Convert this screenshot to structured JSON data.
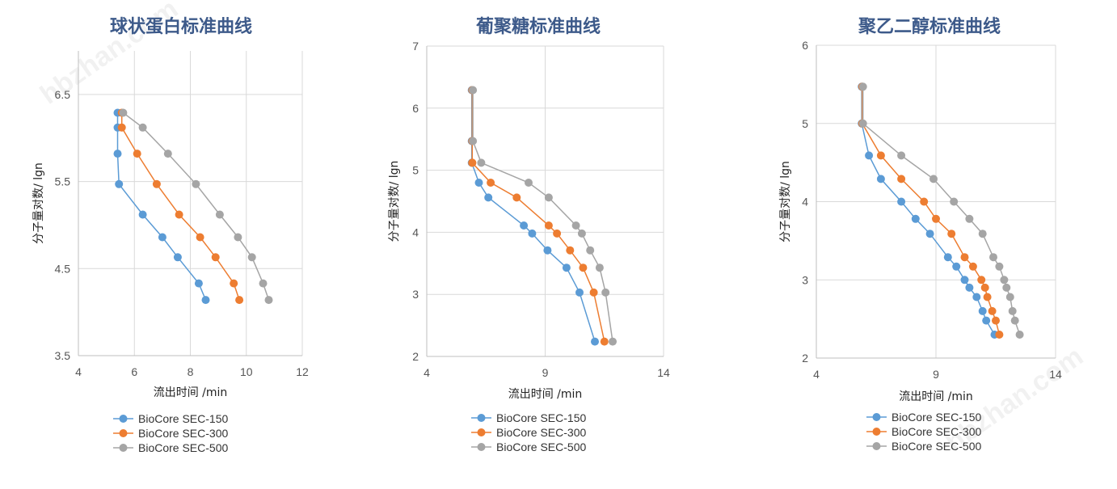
{
  "colors": {
    "s150": "#5b9bd5",
    "s300": "#ed7d31",
    "s500": "#a5a5a5",
    "title": "#3d5a8a"
  },
  "watermark": "hbzhan.com",
  "chart_data": [
    {
      "type": "line",
      "title": "球状蛋白标准曲线",
      "xlabel": "流出时间 /min",
      "ylabel": "分子量对数/ lgn",
      "xlim": [
        4,
        12
      ],
      "ylim": [
        3.5,
        7
      ],
      "xticks": [
        "4",
        "6",
        "8",
        "10",
        "12"
      ],
      "yticks": [
        "3.5",
        "4.5",
        "5.5",
        "6.5"
      ],
      "series": [
        {
          "name": "BioCore SEC-150",
          "x": [
            5.4,
            5.4,
            5.4,
            5.45,
            6.3,
            7.0,
            7.55,
            8.3,
            8.55
          ],
          "y": [
            6.29,
            6.12,
            5.82,
            5.47,
            5.12,
            4.86,
            4.63,
            4.33,
            4.14
          ]
        },
        {
          "name": "BioCore SEC-300",
          "x": [
            5.55,
            5.55,
            6.1,
            6.8,
            7.6,
            8.35,
            8.9,
            9.55,
            9.75
          ],
          "y": [
            6.29,
            6.12,
            5.82,
            5.47,
            5.12,
            4.86,
            4.63,
            4.33,
            4.14
          ]
        },
        {
          "name": "BioCore SEC-500",
          "x": [
            5.6,
            6.3,
            7.2,
            8.2,
            9.05,
            9.7,
            10.2,
            10.6,
            10.8
          ],
          "y": [
            6.29,
            6.12,
            5.82,
            5.47,
            5.12,
            4.86,
            4.63,
            4.33,
            4.14
          ]
        }
      ]
    },
    {
      "type": "line",
      "title": "葡聚糖标准曲线",
      "xlabel": "流出时间 /min",
      "ylabel": "分子量对数/ lgn",
      "xlim": [
        4,
        14
      ],
      "ylim": [
        2,
        7
      ],
      "xticks": [
        "4",
        "9",
        "14"
      ],
      "yticks": [
        "2",
        "3",
        "4",
        "5",
        "6",
        "7"
      ],
      "series": [
        {
          "name": "BioCore SEC-150",
          "x": [
            5.9,
            5.9,
            5.9,
            6.2,
            6.6,
            8.1,
            8.45,
            9.1,
            9.9,
            10.45,
            11.1
          ],
          "y": [
            6.29,
            5.47,
            5.12,
            4.8,
            4.56,
            4.11,
            3.98,
            3.71,
            3.43,
            3.03,
            2.24
          ]
        },
        {
          "name": "BioCore SEC-300",
          "x": [
            5.92,
            5.92,
            5.92,
            5.92,
            6.7,
            7.8,
            9.15,
            9.5,
            10.05,
            10.6,
            11.05,
            11.5
          ],
          "y": [
            6.29,
            5.47,
            5.12,
            5.12,
            4.8,
            4.56,
            4.11,
            3.98,
            3.71,
            3.43,
            3.03,
            2.24
          ]
        },
        {
          "name": "BioCore SEC-500",
          "x": [
            5.95,
            5.95,
            6.3,
            8.3,
            9.15,
            10.3,
            10.55,
            10.9,
            11.3,
            11.55,
            11.85
          ],
          "y": [
            6.29,
            5.47,
            5.12,
            4.8,
            4.56,
            4.11,
            3.98,
            3.71,
            3.43,
            3.03,
            2.24
          ]
        }
      ]
    },
    {
      "type": "line",
      "title": "聚乙二醇标准曲线",
      "xlabel": "流出时间 /min",
      "ylabel": "分子量对数/ lgn",
      "xlim": [
        4,
        14
      ],
      "ylim": [
        2,
        6
      ],
      "xticks": [
        "4",
        "9",
        "14"
      ],
      "yticks": [
        "2",
        "3",
        "4",
        "5",
        "6"
      ],
      "series": [
        {
          "name": "BioCore SEC-150",
          "x": [
            5.9,
            5.9,
            6.2,
            6.7,
            7.55,
            8.15,
            8.75,
            9.5,
            9.85,
            10.2,
            10.4,
            10.7,
            10.95,
            11.1,
            11.45
          ],
          "y": [
            5.47,
            5.0,
            4.59,
            4.29,
            4.0,
            3.78,
            3.59,
            3.29,
            3.17,
            3.0,
            2.9,
            2.78,
            2.6,
            2.48,
            2.3
          ]
        },
        {
          "name": "BioCore SEC-300",
          "x": [
            5.92,
            5.92,
            6.7,
            7.55,
            8.5,
            9.0,
            9.65,
            10.2,
            10.55,
            10.9,
            11.05,
            11.15,
            11.35,
            11.5,
            11.65
          ],
          "y": [
            5.47,
            5.0,
            4.59,
            4.29,
            4.0,
            3.78,
            3.59,
            3.29,
            3.17,
            3.0,
            2.9,
            2.78,
            2.6,
            2.48,
            2.3
          ]
        },
        {
          "name": "BioCore SEC-500",
          "x": [
            5.95,
            5.95,
            7.55,
            8.9,
            9.75,
            10.4,
            10.95,
            11.4,
            11.65,
            11.85,
            11.95,
            12.1,
            12.2,
            12.3,
            12.5
          ],
          "y": [
            5.47,
            5.0,
            4.59,
            4.29,
            4.0,
            3.78,
            3.59,
            3.29,
            3.17,
            3.0,
            2.9,
            2.78,
            2.6,
            2.48,
            2.3
          ]
        }
      ]
    }
  ]
}
